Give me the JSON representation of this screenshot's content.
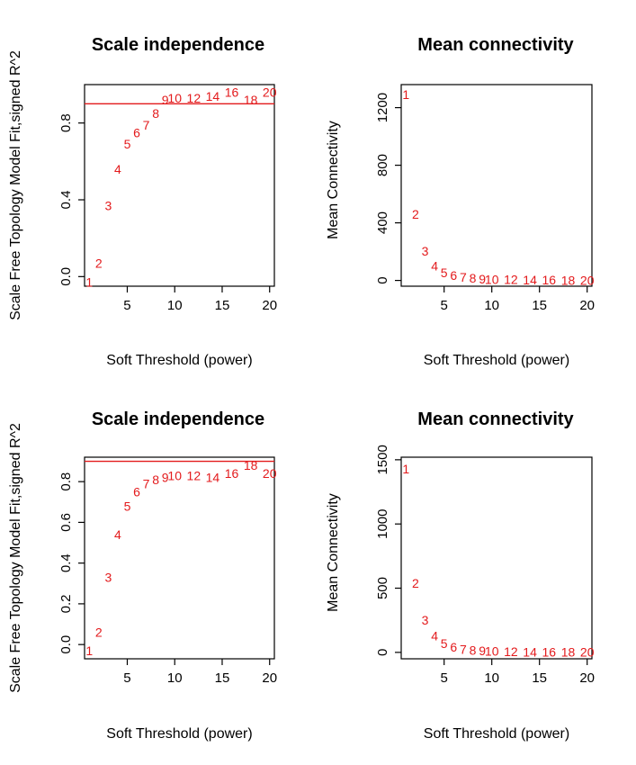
{
  "chart_data": [
    {
      "type": "scatter",
      "title": "Scale independence",
      "xlabel": "Soft Threshold (power)",
      "ylabel": "Scale Free Topology Model Fit,signed R^2",
      "x": [
        1,
        2,
        3,
        4,
        5,
        6,
        7,
        8,
        9,
        10,
        12,
        14,
        16,
        18,
        20
      ],
      "y": [
        -0.03,
        0.07,
        0.37,
        0.56,
        0.69,
        0.75,
        0.79,
        0.85,
        0.92,
        0.93,
        0.93,
        0.94,
        0.96,
        0.92,
        0.96
      ],
      "point_labels": [
        "1",
        "2",
        "3",
        "4",
        "5",
        "6",
        "7",
        "8",
        "9",
        "10",
        "12",
        "14",
        "16",
        "18",
        "20"
      ],
      "xlim": [
        0.5,
        20.5
      ],
      "ylim": [
        -0.05,
        1.0
      ],
      "xticks": [
        5,
        10,
        15,
        20
      ],
      "yticks": [
        0.0,
        0.4,
        0.8
      ],
      "ytick_labels": [
        "0.0",
        "0.4",
        "0.8"
      ],
      "hline": 0.9,
      "point_color": "#e31a1c",
      "hline_color": "#e31a1c"
    },
    {
      "type": "scatter",
      "title": "Mean connectivity",
      "xlabel": "Soft Threshold (power)",
      "ylabel": "Mean Connectivity",
      "x": [
        1,
        2,
        3,
        4,
        5,
        6,
        7,
        8,
        9,
        10,
        12,
        14,
        16,
        18,
        20
      ],
      "y": [
        1290,
        460,
        205,
        100,
        55,
        35,
        22,
        15,
        10,
        8,
        6,
        4,
        3,
        2,
        1
      ],
      "point_labels": [
        "1",
        "2",
        "3",
        "4",
        "5",
        "6",
        "7",
        "8",
        "9",
        "10",
        "12",
        "14",
        "16",
        "18",
        "20"
      ],
      "xlim": [
        0.5,
        20.5
      ],
      "ylim": [
        -40,
        1360
      ],
      "xticks": [
        5,
        10,
        15,
        20
      ],
      "yticks": [
        0,
        400,
        800,
        1200
      ],
      "ytick_labels": [
        "0",
        "400",
        "800",
        "1200"
      ],
      "point_color": "#e31a1c"
    },
    {
      "type": "scatter",
      "title": "Scale independence",
      "xlabel": "Soft Threshold (power)",
      "ylabel": "Scale Free Topology Model Fit,signed R^2",
      "x": [
        1,
        2,
        3,
        4,
        5,
        6,
        7,
        8,
        9,
        10,
        12,
        14,
        16,
        18,
        20
      ],
      "y": [
        -0.03,
        0.06,
        0.33,
        0.54,
        0.68,
        0.75,
        0.79,
        0.81,
        0.82,
        0.83,
        0.83,
        0.82,
        0.84,
        0.88,
        0.84
      ],
      "point_labels": [
        "1",
        "2",
        "3",
        "4",
        "5",
        "6",
        "7",
        "8",
        "9",
        "10",
        "12",
        "14",
        "16",
        "18",
        "20"
      ],
      "xlim": [
        0.5,
        20.5
      ],
      "ylim": [
        -0.07,
        0.92
      ],
      "xticks": [
        5,
        10,
        15,
        20
      ],
      "yticks": [
        0.0,
        0.2,
        0.4,
        0.6,
        0.8
      ],
      "ytick_labels": [
        "0.0",
        "0.2",
        "0.4",
        "0.6",
        "0.8"
      ],
      "hline": 0.9,
      "point_color": "#e31a1c",
      "hline_color": "#e31a1c"
    },
    {
      "type": "scatter",
      "title": "Mean connectivity",
      "xlabel": "Soft Threshold (power)",
      "ylabel": "Mean Connectivity",
      "x": [
        1,
        2,
        3,
        4,
        5,
        6,
        7,
        8,
        9,
        10,
        12,
        14,
        16,
        18,
        20
      ],
      "y": [
        1430,
        540,
        250,
        130,
        70,
        40,
        25,
        17,
        12,
        9,
        6,
        4,
        3,
        2,
        1
      ],
      "point_labels": [
        "1",
        "2",
        "3",
        "4",
        "5",
        "6",
        "7",
        "8",
        "9",
        "10",
        "12",
        "14",
        "16",
        "18",
        "20"
      ],
      "xlim": [
        0.5,
        20.5
      ],
      "ylim": [
        -50,
        1520
      ],
      "xticks": [
        5,
        10,
        15,
        20
      ],
      "yticks": [
        0,
        500,
        1000,
        1500
      ],
      "ytick_labels": [
        "0",
        "500",
        "1000",
        "1500"
      ],
      "point_color": "#e31a1c"
    }
  ]
}
